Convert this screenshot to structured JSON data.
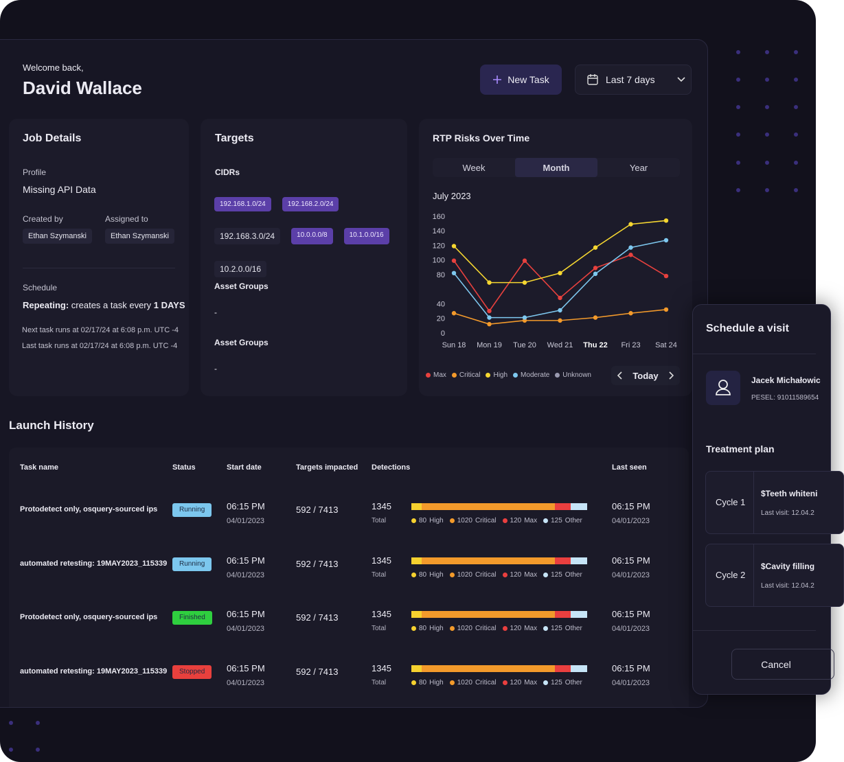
{
  "header": {
    "welcome": "Welcome back,",
    "name": "David Wallace",
    "new_task": "New Task",
    "date_range": "Last 7 days"
  },
  "job_details": {
    "title": "Job Details",
    "profile_label": "Profile",
    "profile": "Missing API Data",
    "created_by_label": "Created by",
    "created_by": "Ethan Szymanski",
    "assigned_to_label": "Assigned to",
    "assigned_to": "Ethan Szymanski",
    "schedule_label": "Schedule",
    "schedule_prefix": "Repeating:",
    "schedule_text": "creates a task every",
    "schedule_interval": "1 DAYS",
    "next_run": "Next task runs at 02/17/24 at 6:08 p.m. UTC -4",
    "last_run": "Last task runs at 02/17/24 at 6:08 p.m. UTC -4"
  },
  "targets": {
    "title": "Targets",
    "cidrs_label": "CIDRs",
    "cidrs": [
      {
        "label": "192.168.1.0/24",
        "highlighted": true
      },
      {
        "label": "192.168.2.0/24",
        "highlighted": true
      },
      {
        "label": "192.168.3.0/24",
        "highlighted": false
      },
      {
        "label": "10.0.0.0/8",
        "highlighted": true
      },
      {
        "label": "10.1.0.0/16",
        "highlighted": true
      },
      {
        "label": "10.2.0.0/16",
        "highlighted": false
      }
    ],
    "asset_groups": [
      {
        "label": "Asset Groups",
        "value": "-"
      },
      {
        "label": "Asset Groups",
        "value": "-"
      }
    ]
  },
  "chart_card": {
    "tabs": [
      {
        "label": "Week",
        "active": false
      },
      {
        "label": "Month",
        "active": true
      },
      {
        "label": "Year",
        "active": false
      }
    ],
    "today": "Today"
  },
  "chart_data": {
    "type": "line",
    "title": "RTP Risks Over Time",
    "subtitle": "July 2023",
    "categories": [
      "Sun 18",
      "Mon 19",
      "Tue 20",
      "Wed 21",
      "Thu 22",
      "Fri 23",
      "Sat 24"
    ],
    "highlighted_category": "Thu 22",
    "ylim": [
      0,
      160
    ],
    "yticks": [
      0,
      20,
      40,
      80,
      100,
      120,
      140,
      160
    ],
    "legend": "bottom",
    "series": [
      {
        "name": "Max",
        "color": "#e8413e",
        "values": [
          100,
          31,
          100,
          49,
          90,
          108,
          79
        ]
      },
      {
        "name": "Critical",
        "color": "#f39a2b",
        "values": [
          28,
          13,
          18,
          18,
          22,
          28,
          33
        ]
      },
      {
        "name": "High",
        "color": "#f6d731",
        "values": [
          120,
          70,
          70,
          83,
          118,
          150,
          155
        ]
      },
      {
        "name": "Moderate",
        "color": "#7ec8ef",
        "values": [
          83,
          22,
          22,
          32,
          82,
          118,
          128
        ]
      },
      {
        "name": "Unknown",
        "color": "#9a9ab0",
        "values": [
          null,
          null,
          null,
          null,
          null,
          null,
          null
        ]
      }
    ]
  },
  "launch_history": {
    "title": "Launch History",
    "columns": [
      "Task name",
      "Status",
      "Start date",
      "Targets impacted",
      "Detections",
      "Last seen"
    ],
    "rows": [
      {
        "task": "Protodetect only, osquery-sourced ips",
        "status": {
          "label": "Running",
          "color": "#7cc7ee"
        },
        "start_time": "06:15 PM",
        "start_date": "04/01/2023",
        "targets": "592 / 7413",
        "detections": 1345,
        "total_label": "Total",
        "breakdown": [
          {
            "value": 80,
            "name": "High",
            "color": "#f6d12f"
          },
          {
            "value": 1020,
            "name": "Critical",
            "color": "#f39a2b"
          },
          {
            "value": 120,
            "name": "Max",
            "color": "#ea3f3f"
          },
          {
            "value": 125,
            "name": "Other",
            "color": "#c6e4f7"
          }
        ],
        "last_seen_time": "06:15 PM",
        "last_seen_date": "04/01/2023"
      },
      {
        "task": "automated retesting: 19MAY2023_115339",
        "status": {
          "label": "Running",
          "color": "#7cc7ee"
        },
        "start_time": "06:15 PM",
        "start_date": "04/01/2023",
        "targets": "592 / 7413",
        "detections": 1345,
        "total_label": "Total",
        "breakdown": [
          {
            "value": 80,
            "name": "High",
            "color": "#f6d12f"
          },
          {
            "value": 1020,
            "name": "Critical",
            "color": "#f39a2b"
          },
          {
            "value": 120,
            "name": "Max",
            "color": "#ea3f3f"
          },
          {
            "value": 125,
            "name": "Other",
            "color": "#c6e4f7"
          }
        ],
        "last_seen_time": "06:15 PM",
        "last_seen_date": "04/01/2023"
      },
      {
        "task": "Protodetect only, osquery-sourced ips",
        "status": {
          "label": "Finished",
          "color": "#2fcf3f"
        },
        "start_time": "06:15 PM",
        "start_date": "04/01/2023",
        "targets": "592 / 7413",
        "detections": 1345,
        "total_label": "Total",
        "breakdown": [
          {
            "value": 80,
            "name": "High",
            "color": "#f6d12f"
          },
          {
            "value": 1020,
            "name": "Critical",
            "color": "#f39a2b"
          },
          {
            "value": 120,
            "name": "Max",
            "color": "#ea3f3f"
          },
          {
            "value": 125,
            "name": "Other",
            "color": "#c6e4f7"
          }
        ],
        "last_seen_time": "06:15 PM",
        "last_seen_date": "04/01/2023"
      },
      {
        "task": "automated retesting: 19MAY2023_115339",
        "status": {
          "label": "Stopped",
          "color": "#e8403d"
        },
        "start_time": "06:15 PM",
        "start_date": "04/01/2023",
        "targets": "592 / 7413",
        "detections": 1345,
        "total_label": "Total",
        "breakdown": [
          {
            "value": 80,
            "name": "High",
            "color": "#f6d12f"
          },
          {
            "value": 1020,
            "name": "Critical",
            "color": "#f39a2b"
          },
          {
            "value": 120,
            "name": "Max",
            "color": "#ea3f3f"
          },
          {
            "value": 125,
            "name": "Other",
            "color": "#c6e4f7"
          }
        ],
        "last_seen_time": "06:15 PM",
        "last_seen_date": "04/01/2023"
      }
    ]
  },
  "schedule_visit": {
    "title": "Schedule a visit",
    "patient": "Jacek Michałowic",
    "pesel": "PESEL: 91011589654",
    "plan_title": "Treatment plan",
    "cycles": [
      {
        "label": "Cycle 1",
        "treatment": "$Teeth whiteni",
        "last_visit": "Last visit: 12.04.2"
      },
      {
        "label": "Cycle 2",
        "treatment": "$Cavity filling",
        "last_visit": "Last visit: 12.04.2"
      }
    ],
    "cancel": "Cancel"
  }
}
